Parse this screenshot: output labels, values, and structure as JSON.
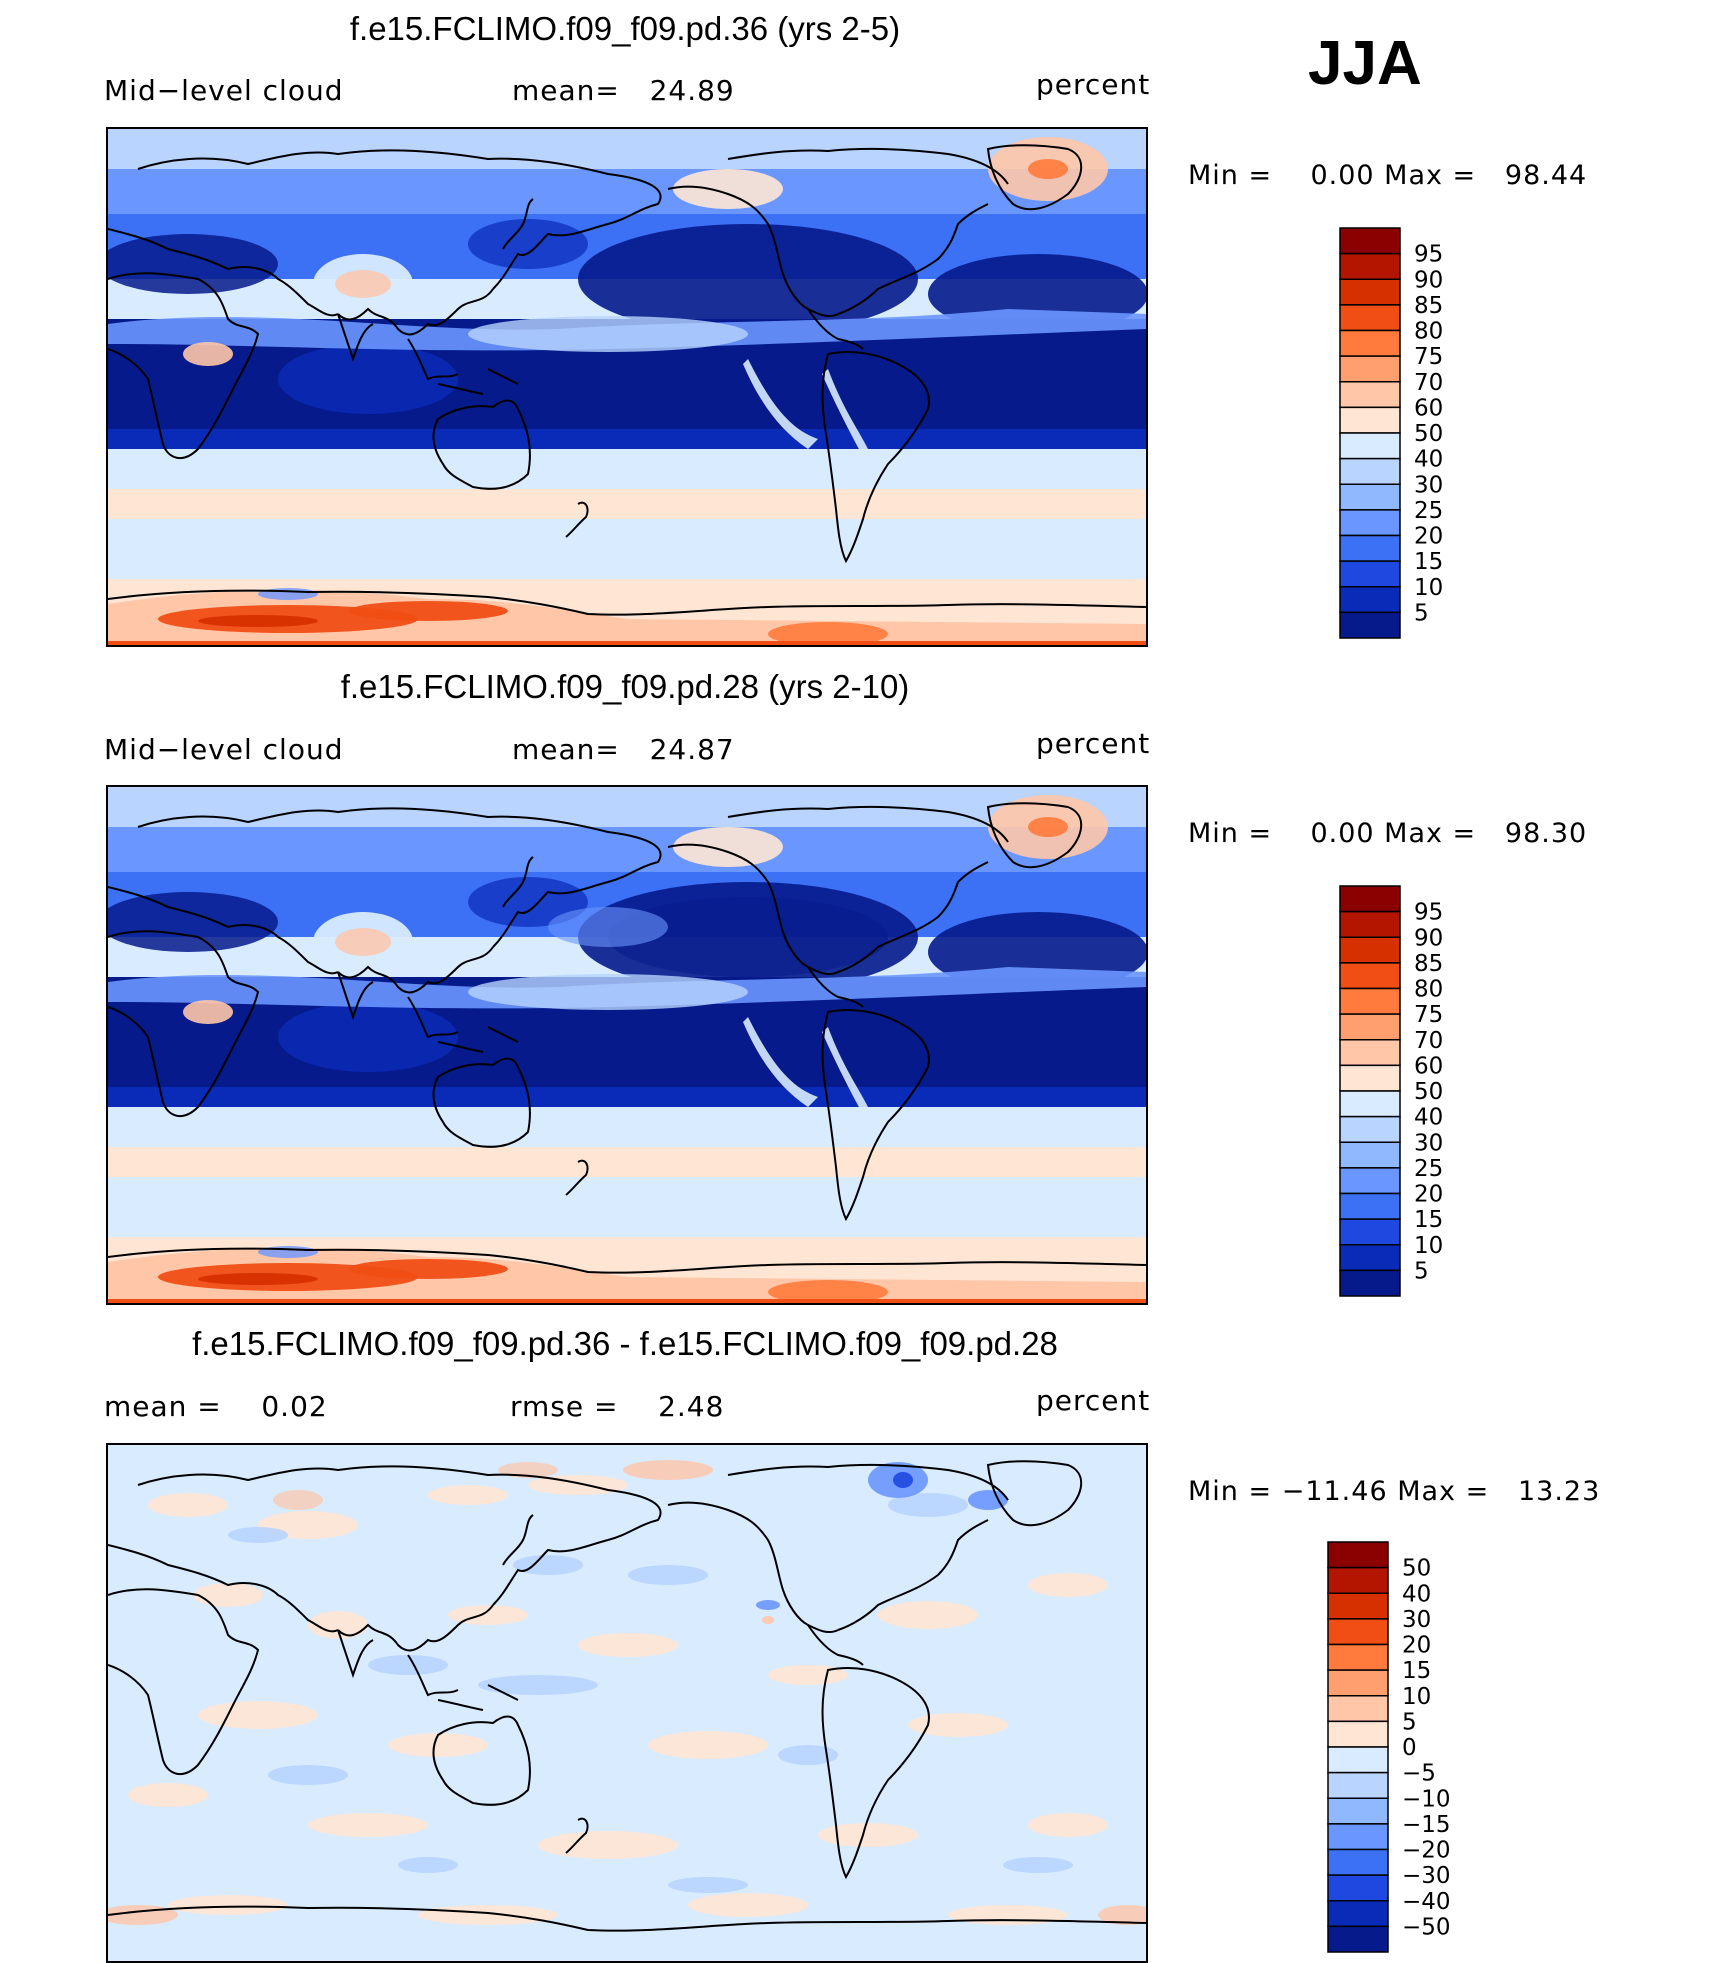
{
  "season": "JJA",
  "panels": [
    {
      "title": "f.e15.FCLIMO.f09_f09.pd.36 (yrs 2-5)",
      "left_label": "Mid−level cloud",
      "center_label": "mean=   24.89",
      "units": "percent",
      "minmax": "Min =    0.00 Max =   98.44",
      "field": "abs"
    },
    {
      "title": "f.e15.FCLIMO.f09_f09.pd.28 (yrs 2-10)",
      "left_label": "Mid−level cloud",
      "center_label": "mean=   24.87",
      "units": "percent",
      "minmax": "Min =    0.00 Max =   98.30",
      "field": "abs"
    },
    {
      "title": "f.e15.FCLIMO.f09_f09.pd.36 - f.e15.FCLIMO.f09_f09.pd.28",
      "left_label": "mean =    0.02",
      "center_label": "rmse =    2.48",
      "units": "percent",
      "minmax": "Min = −11.46 Max =   13.23",
      "field": "diff"
    }
  ],
  "colorbars": [
    {
      "levels": [
        "95",
        "90",
        "85",
        "80",
        "75",
        "70",
        "60",
        "50",
        "40",
        "30",
        "25",
        "20",
        "15",
        "10",
        "5"
      ],
      "colors": [
        "#8b0000",
        "#b31500",
        "#d73000",
        "#f04e14",
        "#ff7a3c",
        "#ff9f70",
        "#ffc6a8",
        "#ffe6d4",
        "#d8ebff",
        "#b8d4ff",
        "#90b8ff",
        "#6a96ff",
        "#3c70f5",
        "#1e48e0",
        "#0a2bb8",
        "#061a8c"
      ]
    },
    {
      "levels": [
        "95",
        "90",
        "85",
        "80",
        "75",
        "70",
        "60",
        "50",
        "40",
        "30",
        "25",
        "20",
        "15",
        "10",
        "5"
      ],
      "colors": [
        "#8b0000",
        "#b31500",
        "#d73000",
        "#f04e14",
        "#ff7a3c",
        "#ff9f70",
        "#ffc6a8",
        "#ffe6d4",
        "#d8ebff",
        "#b8d4ff",
        "#90b8ff",
        "#6a96ff",
        "#3c70f5",
        "#1e48e0",
        "#0a2bb8",
        "#061a8c"
      ]
    },
    {
      "levels": [
        "50",
        "40",
        "30",
        "20",
        "15",
        "10",
        "5",
        "0",
        "−5",
        "−10",
        "−15",
        "−20",
        "−30",
        "−40",
        "−50"
      ],
      "colors": [
        "#8b0000",
        "#b31500",
        "#d73000",
        "#f04e14",
        "#ff7a3c",
        "#ff9f70",
        "#ffc6a8",
        "#ffe6d4",
        "#d8ebff",
        "#b8d4ff",
        "#90b8ff",
        "#6a96ff",
        "#3c70f5",
        "#1e48e0",
        "#0a2bb8",
        "#061a8c"
      ]
    }
  ],
  "chart_data": [
    {
      "type": "heatmap",
      "title": "f.e15.FCLIMO.f09_f09.pd.36 (yrs 2-5)",
      "variable": "Mid-level cloud",
      "units": "percent",
      "mean": 24.89,
      "min": 0.0,
      "max": 98.44,
      "contour_levels": [
        5,
        10,
        15,
        20,
        25,
        30,
        40,
        50,
        60,
        70,
        75,
        80,
        85,
        90,
        95
      ]
    },
    {
      "type": "heatmap",
      "title": "f.e15.FCLIMO.f09_f09.pd.28 (yrs 2-10)",
      "variable": "Mid-level cloud",
      "units": "percent",
      "mean": 24.87,
      "min": 0.0,
      "max": 98.3,
      "contour_levels": [
        5,
        10,
        15,
        20,
        25,
        30,
        40,
        50,
        60,
        70,
        75,
        80,
        85,
        90,
        95
      ]
    },
    {
      "type": "heatmap",
      "title": "f.e15.FCLIMO.f09_f09.pd.36 - f.e15.FCLIMO.f09_f09.pd.28",
      "units": "percent",
      "mean": 0.02,
      "rmse": 2.48,
      "min": -11.46,
      "max": 13.23,
      "contour_levels": [
        -50,
        -40,
        -30,
        -20,
        -15,
        -10,
        -5,
        0,
        5,
        10,
        15,
        20,
        30,
        40,
        50
      ]
    }
  ]
}
